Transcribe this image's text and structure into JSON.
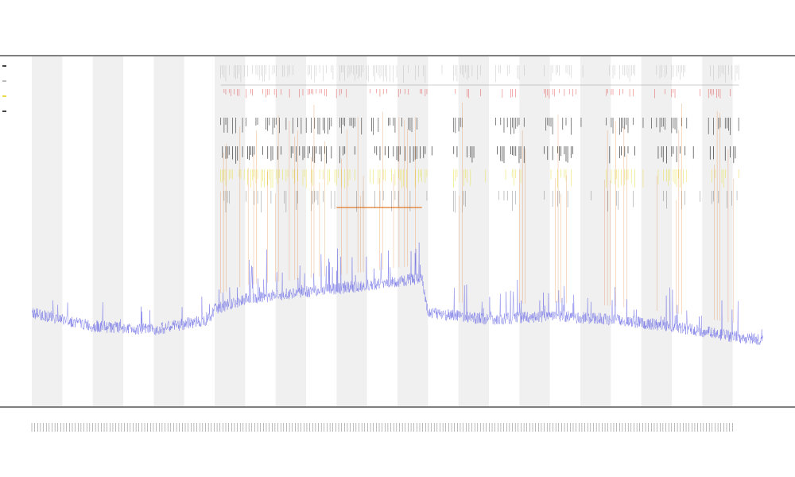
{
  "header": {
    "title": "",
    "subtitle_1": "",
    "subtitle_2": ""
  },
  "chart_data": {
    "type": "line",
    "xlabel": "",
    "ylabel": "",
    "grid": false,
    "legend_placement": "top-left",
    "legend": [
      {
        "label": "",
        "color": "#444444"
      },
      {
        "label": "",
        "color": "#bbbbbb"
      },
      {
        "label": "",
        "color": "#e8d84a"
      },
      {
        "label": "",
        "color": "#444444"
      }
    ],
    "track_labels": [
      "",
      ""
    ],
    "colors": {
      "signal": "#6a6ae6",
      "peaks": "#e07a2a",
      "band_yellow": "#e8e04a",
      "band_red": "#e04040",
      "band_dark": "#333333",
      "shade": "#f0f0f0"
    },
    "x_range": [
      0,
      240
    ],
    "y_range": [
      0,
      1
    ],
    "shaded_bands": [
      [
        0,
        10
      ],
      [
        20,
        30
      ],
      [
        40,
        50
      ],
      [
        60,
        70
      ],
      [
        80,
        90
      ],
      [
        100,
        110
      ],
      [
        120,
        130
      ],
      [
        140,
        150
      ],
      [
        160,
        170
      ],
      [
        180,
        190
      ],
      [
        200,
        210
      ],
      [
        220,
        230
      ]
    ],
    "baseline": [
      {
        "x": 0,
        "y": 0.26
      },
      {
        "x": 20,
        "y": 0.22
      },
      {
        "x": 40,
        "y": 0.21
      },
      {
        "x": 58,
        "y": 0.24
      },
      {
        "x": 60,
        "y": 0.27
      },
      {
        "x": 70,
        "y": 0.3
      },
      {
        "x": 90,
        "y": 0.32
      },
      {
        "x": 110,
        "y": 0.34
      },
      {
        "x": 128,
        "y": 0.36
      },
      {
        "x": 130,
        "y": 0.26
      },
      {
        "x": 150,
        "y": 0.24
      },
      {
        "x": 170,
        "y": 0.25
      },
      {
        "x": 190,
        "y": 0.24
      },
      {
        "x": 210,
        "y": 0.22
      },
      {
        "x": 230,
        "y": 0.19
      },
      {
        "x": 240,
        "y": 0.18
      }
    ],
    "active_regions": [
      [
        60,
        130
      ],
      [
        138,
        145
      ],
      [
        152,
        162
      ],
      [
        168,
        178
      ],
      [
        188,
        198
      ],
      [
        205,
        215
      ],
      [
        222,
        232
      ]
    ]
  }
}
